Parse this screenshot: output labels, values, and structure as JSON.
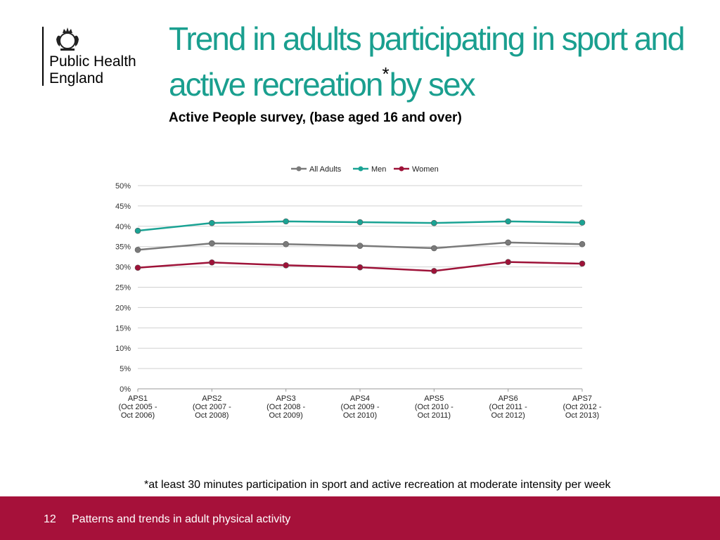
{
  "org": {
    "name": "Public Health\nEngland"
  },
  "title": {
    "main": "Trend in adults participating in sport and active recreation",
    "marker": "*",
    "suffix": "by sex"
  },
  "subtitle": "Active People survey, (base aged 16 and over)",
  "footnote": "*at least 30 minutes participation in sport and active recreation at moderate intensity per week",
  "footer": {
    "page_number": "12",
    "text": "Patterns and trends in adult physical activity"
  },
  "chart_data": {
    "type": "line",
    "title": "",
    "xlabel": "",
    "ylabel": "",
    "ylim": [
      0,
      50
    ],
    "yticks": [
      "0%",
      "5%",
      "10%",
      "15%",
      "20%",
      "25%",
      "30%",
      "35%",
      "40%",
      "45%",
      "50%"
    ],
    "legend_position": "top",
    "categories": [
      [
        "APS1",
        "(Oct 2005 -",
        "Oct 2006)"
      ],
      [
        "APS2",
        "(Oct 2007 -",
        "Oct 2008)"
      ],
      [
        "APS3",
        "(Oct 2008 -",
        "Oct 2009)"
      ],
      [
        "APS4",
        "(Oct 2009 -",
        "Oct 2010)"
      ],
      [
        "APS5",
        "(Oct 2010 -",
        "Oct 2011)"
      ],
      [
        "APS6",
        "(Oct 2011 -",
        "Oct 2012)"
      ],
      [
        "APS7",
        "(Oct 2012 -",
        "Oct 2013)"
      ]
    ],
    "series": [
      {
        "name": "All Adults",
        "color": "#7a7a7a",
        "values": [
          34.2,
          35.8,
          35.6,
          35.2,
          34.6,
          36.0,
          35.6
        ]
      },
      {
        "name": "Men",
        "color": "#1aa394",
        "values": [
          38.9,
          40.8,
          41.2,
          41.0,
          40.8,
          41.2,
          40.9
        ]
      },
      {
        "name": "Women",
        "color": "#9e1238",
        "values": [
          29.8,
          31.1,
          30.4,
          29.9,
          29.0,
          31.2,
          30.8
        ]
      }
    ]
  }
}
